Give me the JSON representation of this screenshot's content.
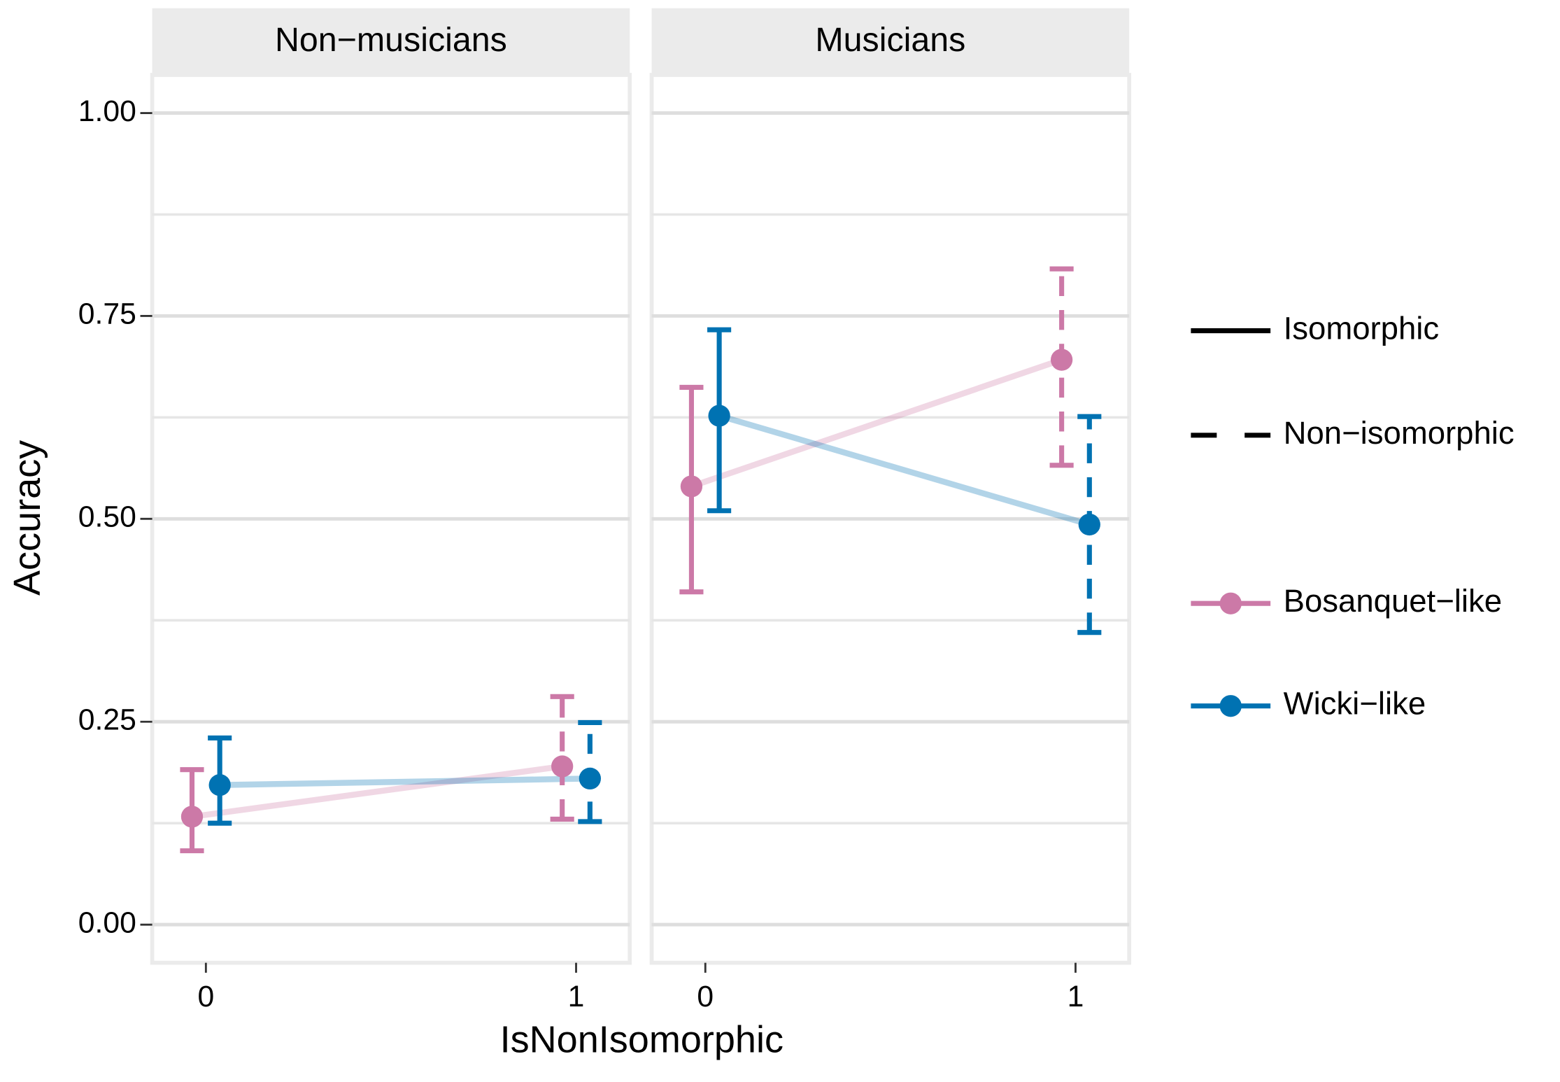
{
  "chart_data": [
    {
      "type": "line",
      "title": "Non−musicians",
      "x": [
        0,
        1
      ],
      "xlim": [
        -0.145,
        1.145
      ],
      "xticks": [
        0,
        1
      ],
      "ylim": [
        -0.047,
        1.047
      ],
      "yticks": [
        {
          "value": 0,
          "label": "0.00"
        },
        {
          "value": 0.25,
          "label": "0.25"
        },
        {
          "value": 0.5,
          "label": "0.50"
        },
        {
          "value": 0.75,
          "label": "0.75"
        },
        {
          "value": 1,
          "label": "1.00"
        }
      ],
      "minor_grid": [
        0.125,
        0.375,
        0.625,
        0.875
      ],
      "series": [
        {
          "name": "Bosanquet−like",
          "color": "#cc79a7",
          "values": [
            0.133,
            0.195
          ],
          "lower": [
            0.091,
            0.13
          ],
          "upper": [
            0.191,
            0.281
          ]
        },
        {
          "name": "Wicki−like",
          "color": "#0072b2",
          "values": [
            0.172,
            0.18
          ],
          "lower": [
            0.125,
            0.127
          ],
          "upper": [
            0.23,
            0.249
          ]
        }
      ]
    },
    {
      "type": "line",
      "title": "Musicians",
      "x": [
        0,
        1
      ],
      "xlim": [
        -0.145,
        1.145
      ],
      "xticks": [
        0,
        1
      ],
      "ylim": [
        -0.047,
        1.047
      ],
      "yticks": [
        {
          "value": 0,
          "label": "0.00"
        },
        {
          "value": 0.25,
          "label": "0.25"
        },
        {
          "value": 0.5,
          "label": "0.50"
        },
        {
          "value": 0.75,
          "label": "0.75"
        },
        {
          "value": 1,
          "label": "1.00"
        }
      ],
      "minor_grid": [
        0.125,
        0.375,
        0.625,
        0.875
      ],
      "series": [
        {
          "name": "Bosanquet−like",
          "color": "#cc79a7",
          "values": [
            0.54,
            0.696
          ],
          "lower": [
            0.41,
            0.566
          ],
          "upper": [
            0.662,
            0.808
          ]
        },
        {
          "name": "Wicki−like",
          "color": "#0072b2",
          "values": [
            0.627,
            0.493
          ],
          "lower": [
            0.51,
            0.36
          ],
          "upper": [
            0.733,
            0.626
          ]
        }
      ]
    }
  ],
  "axes": {
    "x_label": "IsNonIsomorphic",
    "y_label": "Accuracy"
  },
  "linetype_legend": [
    {
      "name": "Isomorphic",
      "dash": "solid"
    },
    {
      "name": "Non−isomorphic",
      "dash": "dashed"
    }
  ]
}
